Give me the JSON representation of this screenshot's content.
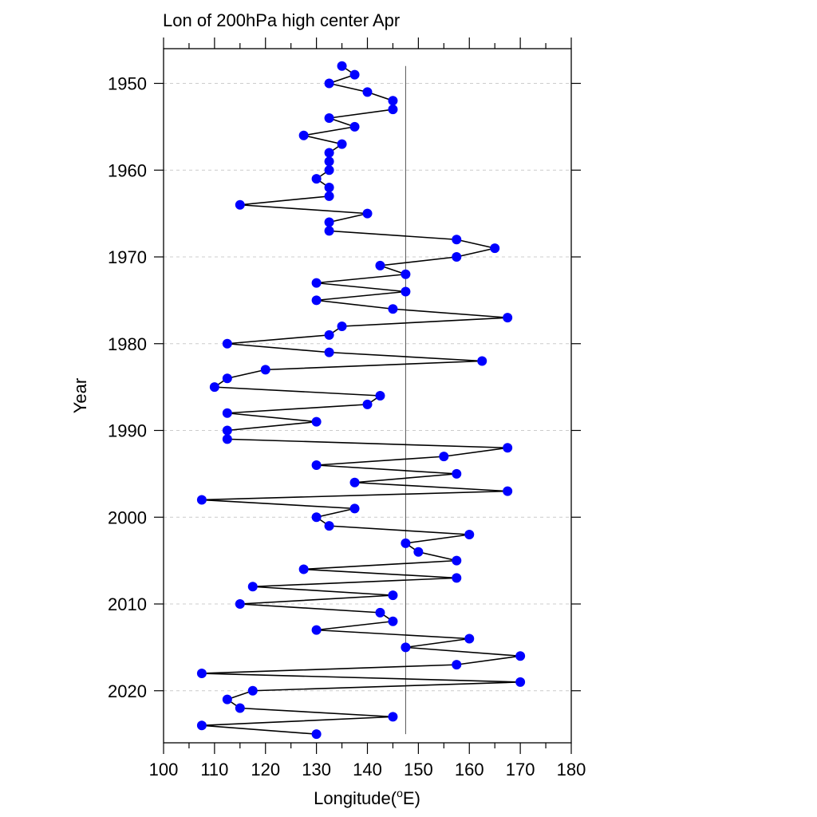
{
  "chart_data": {
    "type": "line",
    "title": "Lon of 200hPa high center Apr",
    "xlabel": "Longitude(",
    "xlabel_sup": "o",
    "xlabel_suffix": "E)",
    "ylabel": "Year",
    "xlim": [
      100,
      180
    ],
    "ylim": [
      1946,
      2026
    ],
    "y_inverted": true,
    "xticks": [
      100,
      110,
      120,
      130,
      140,
      150,
      160,
      170,
      180
    ],
    "yticks": [
      1950,
      1960,
      1970,
      1980,
      1990,
      2000,
      2010,
      2020
    ],
    "ygrid": true,
    "reference_line_x": 147.5,
    "colors": {
      "marker": "#0000ff",
      "line": "#000000",
      "reference": "#555555",
      "grid": "#cccccc"
    },
    "series": [
      {
        "years": [
          1948,
          1949,
          1950,
          1951,
          1952,
          1953,
          1954,
          1955,
          1956,
          1957,
          1958,
          1959,
          1960,
          1961,
          1962,
          1963,
          1964,
          1965,
          1966,
          1967,
          1968,
          1969,
          1970,
          1971,
          1972,
          1973,
          1974,
          1975,
          1976,
          1977,
          1978,
          1979,
          1980,
          1981,
          1982,
          1983,
          1984,
          1985,
          1986,
          1987,
          1988,
          1989,
          1990,
          1991,
          1992,
          1993,
          1994,
          1995,
          1996,
          1997,
          1998,
          1999,
          2000,
          2001,
          2002,
          2003,
          2004,
          2005,
          2006,
          2007,
          2008,
          2009,
          2010,
          2011,
          2012,
          2013,
          2014,
          2015,
          2016,
          2017,
          2018,
          2019,
          2020,
          2021,
          2022,
          2023,
          2024,
          2025
        ],
        "lon": [
          135,
          137.5,
          132.5,
          140,
          145,
          145,
          132.5,
          137.5,
          127.5,
          135,
          132.5,
          132.5,
          132.5,
          130,
          132.5,
          132.5,
          115,
          140,
          132.5,
          132.5,
          157.5,
          165,
          157.5,
          142.5,
          147.5,
          130,
          147.5,
          130,
          145,
          167.5,
          135,
          132.5,
          112.5,
          132.5,
          162.5,
          120,
          112.5,
          110,
          142.5,
          140,
          112.5,
          130,
          112.5,
          112.5,
          167.5,
          155,
          130,
          157.5,
          137.5,
          167.5,
          107.5,
          137.5,
          130,
          132.5,
          160,
          147.5,
          150,
          157.5,
          127.5,
          157.5,
          117.5,
          145,
          115,
          142.5,
          145,
          130,
          160,
          147.5,
          170,
          157.5,
          107.5,
          170,
          117.5,
          112.5,
          115,
          145,
          107.5,
          130
        ]
      }
    ]
  }
}
